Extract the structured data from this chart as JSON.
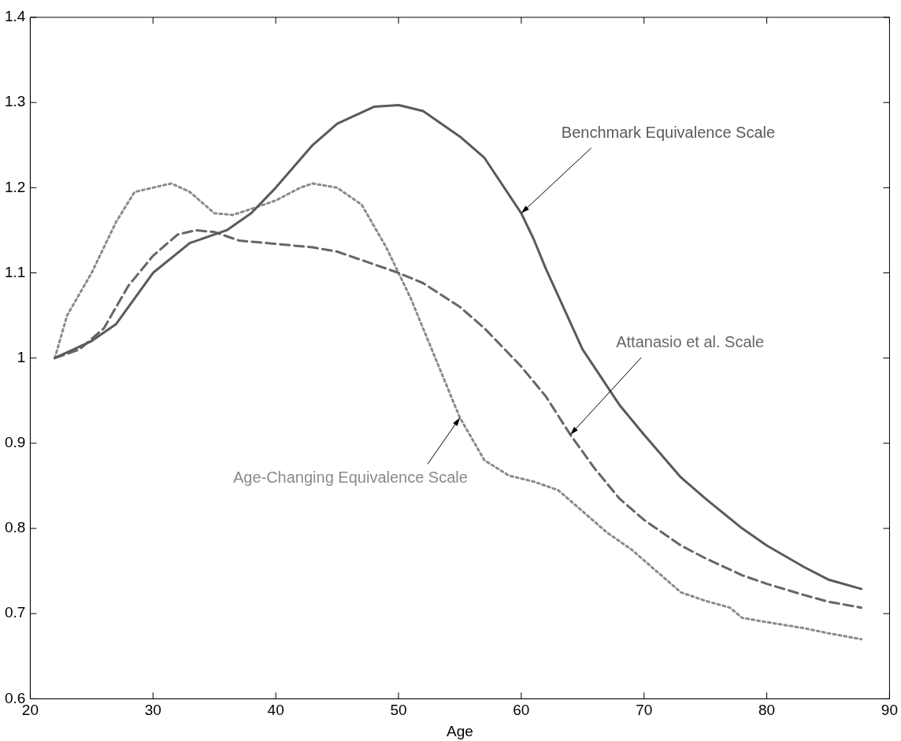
{
  "chart_data": {
    "type": "line",
    "xlabel": "Age",
    "xlim": [
      20,
      90
    ],
    "xticks": [
      20,
      30,
      40,
      50,
      60,
      70,
      80,
      90
    ],
    "ylim": [
      0.6,
      1.4
    ],
    "yticks": [
      0.6,
      0.7,
      0.8,
      0.9,
      1,
      1.1,
      1.2,
      1.3,
      1.4
    ],
    "grid": false,
    "legend": false,
    "marker": "none",
    "series": [
      {
        "name": "Benchmark Equivalence Scale",
        "color": "#5a5a5a",
        "line_style": "solid",
        "x": [
          22,
          25,
          27,
          30,
          33,
          36,
          38,
          40,
          43,
          45,
          48,
          50,
          52,
          55,
          57,
          60,
          61,
          62,
          65,
          68,
          70,
          73,
          75,
          78,
          80,
          83,
          85,
          87.7
        ],
        "values": [
          1.0,
          1.02,
          1.04,
          1.1,
          1.135,
          1.15,
          1.17,
          1.2,
          1.25,
          1.275,
          1.295,
          1.297,
          1.29,
          1.26,
          1.235,
          1.17,
          1.14,
          1.105,
          1.01,
          0.945,
          0.91,
          0.86,
          0.835,
          0.8,
          0.78,
          0.755,
          0.74,
          0.729
        ]
      },
      {
        "name": "Attanasio et al. Scale",
        "color": "#666666",
        "line_style": "dashed",
        "x": [
          22,
          24,
          26,
          28,
          30,
          32,
          33.5,
          35,
          37,
          40,
          43,
          45,
          48,
          50,
          52,
          55,
          57,
          60,
          62,
          64,
          66,
          68,
          70,
          73,
          75,
          78,
          80,
          83,
          85,
          87.7
        ],
        "values": [
          1.0,
          1.01,
          1.035,
          1.085,
          1.12,
          1.145,
          1.15,
          1.148,
          1.138,
          1.134,
          1.13,
          1.125,
          1.11,
          1.1,
          1.088,
          1.06,
          1.035,
          0.99,
          0.955,
          0.91,
          0.87,
          0.835,
          0.81,
          0.78,
          0.765,
          0.745,
          0.735,
          0.722,
          0.714,
          0.707
        ]
      },
      {
        "name": "Age-Changing Equivalence Scale",
        "color": "#8a8a8a",
        "line_style": "dotted",
        "x": [
          22,
          23,
          25,
          27,
          28.5,
          30,
          31.5,
          33,
          35,
          36.5,
          38,
          40,
          42,
          43,
          45,
          47,
          49,
          51,
          53,
          55,
          57,
          59,
          61,
          63,
          65,
          67,
          69,
          71,
          73,
          75,
          77,
          78,
          80,
          83,
          85,
          87.7
        ],
        "values": [
          1.0,
          1.05,
          1.1,
          1.16,
          1.195,
          1.2,
          1.205,
          1.195,
          1.17,
          1.168,
          1.175,
          1.185,
          1.2,
          1.205,
          1.2,
          1.18,
          1.13,
          1.07,
          1.0,
          0.93,
          0.88,
          0.862,
          0.855,
          0.845,
          0.82,
          0.795,
          0.775,
          0.75,
          0.725,
          0.715,
          0.707,
          0.695,
          0.69,
          0.683,
          0.677,
          0.67
        ]
      }
    ]
  }
}
